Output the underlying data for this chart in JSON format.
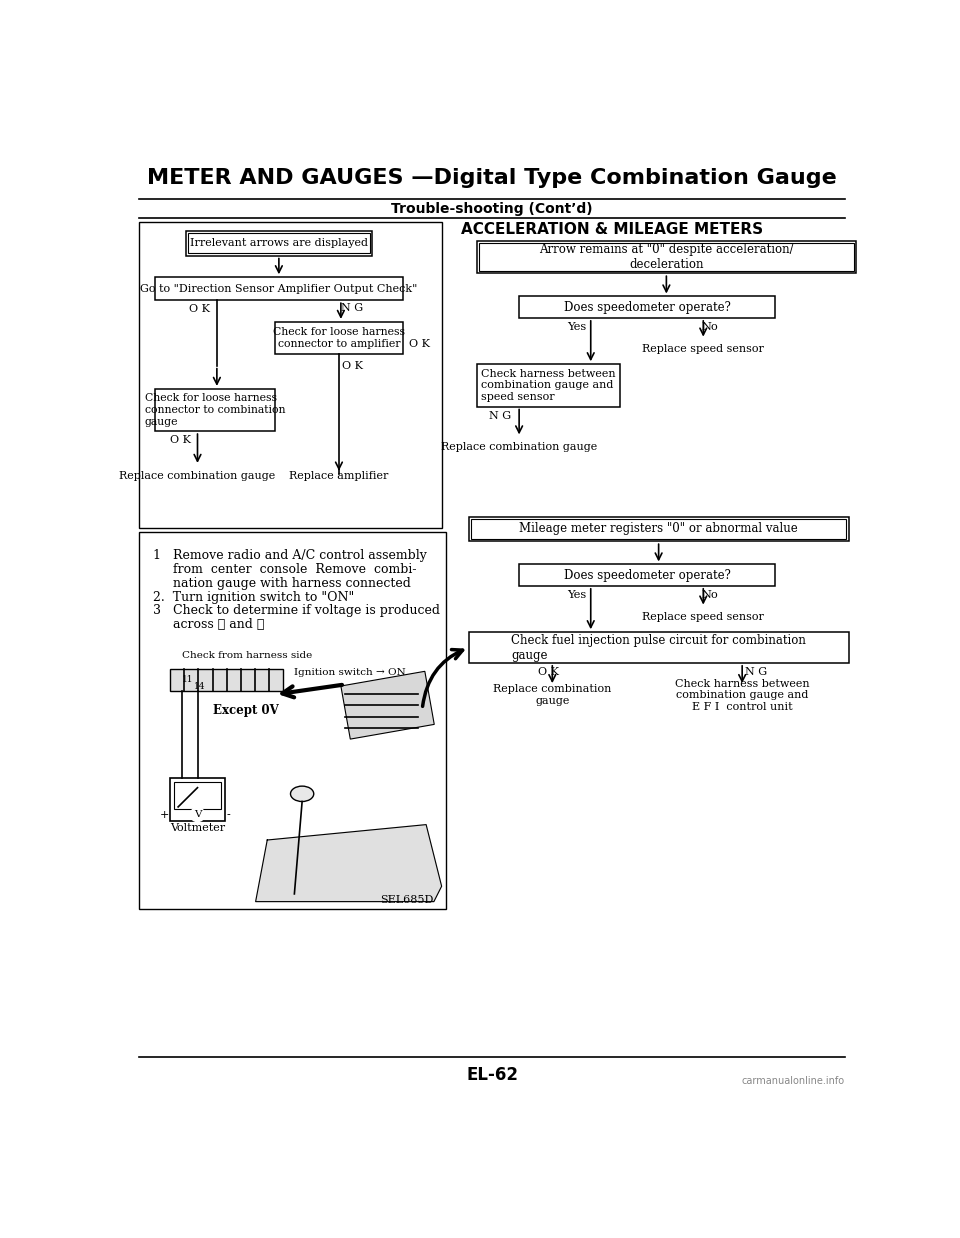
{
  "title": "METER AND GAUGES —Digital Type Combination Gauge",
  "subtitle": "Trouble-shooting (Cont’d)",
  "section1_header": "ACCELERATION & MILEAGE METERS",
  "page_number": "EL-62",
  "watermark": "carmanualonline.info",
  "bg_color": "#ffffff",
  "left_flow": {
    "box1": "Irrelevant arrows are displayed",
    "box2": "Go to \"Direction Sensor Amplifier Output Check\"",
    "box3": "Check for loose harness\nconnector to amplifier",
    "box4": "Check for loose harness\nconnector to combination\ngauge",
    "term1": "Replace combination gauge",
    "term2": "Replace amplifier"
  },
  "right_flow1": {
    "box1": "Arrow remains at \"0\" despite acceleration/\ndeceleration",
    "box2": "Does speedometer operate?",
    "box3": "Check harness between\ncombination gauge and\nspeed sensor",
    "term_no": "Replace speed sensor",
    "term1": "Replace combination gauge"
  },
  "right_flow2": {
    "box1": "Mileage meter registers \"0\" or abnormal value",
    "box2": "Does speedometer operate?",
    "term_no": "Replace speed sensor",
    "box3": "Check fuel injection pulse circuit for combination\ngauge",
    "term_ok": "Replace combination\ngauge",
    "term_ng": "Check harness between\ncombination gauge and\nE F I  control unit"
  },
  "instruction_items": [
    "1   Remove radio and A/C control assembly",
    "     from  center  console  Remove  combi-",
    "     nation gauge with harness connected",
    "2.  Turn ignition switch to \"ON\"",
    "3   Check to determine if voltage is produced",
    "     across ① and ⑤"
  ],
  "fig_caption": "Check from harness side",
  "fig_ignition": "Ignition switch → ON",
  "fig_except": "Except 0V",
  "fig_voltmeter": "Voltmeter",
  "fig_code": "SEL685D"
}
